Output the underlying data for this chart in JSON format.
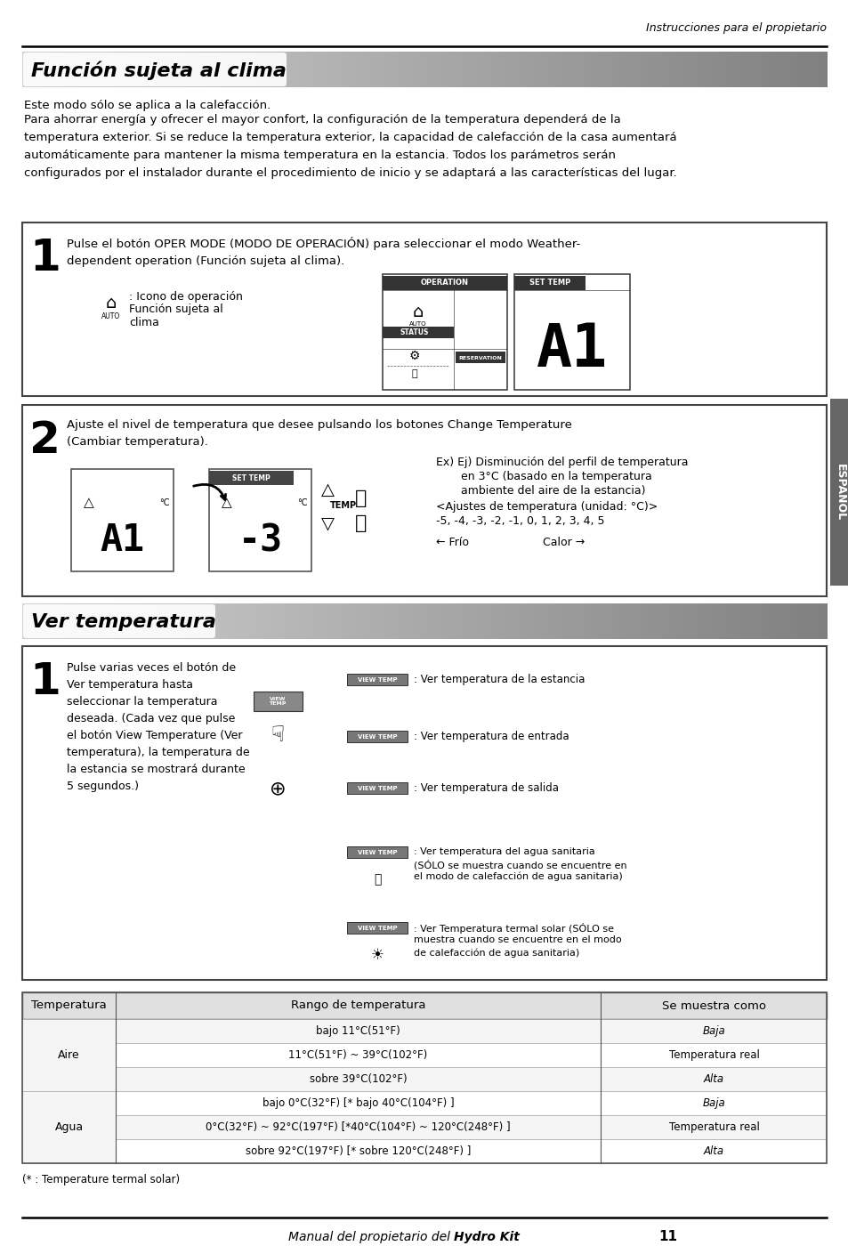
{
  "page_bg": "#ffffff",
  "header_text": "Instrucciones para el propietario",
  "section1_title": "Función sujeta al clima",
  "section2_title": "Ver temperatura",
  "section1_intro1": "Este modo sólo se aplica a la calefacción.",
  "section1_intro2": "Para ahorrar energía y ofrecer el mayor confort, la configuración de la temperatura dependerá de la\ntemperatura exterior. Si se reduce la temperatura exterior, la capacidad de calefacción de la casa aumentará\nautomáticamente para mantener la misma temperatura en la estancia. Todos los parámetros serán\nconfigurados por el instalador durante el procedimiento de inicio y se adaptará a las características del lugar.",
  "step1_text": "Pulse el botón OPER MODE (MODO DE OPERACIÓN) para seleccionar el modo Weather-\ndependent operation (Función sujeta al clima).",
  "step1_icon_text1": ": Icono de operación",
  "step1_icon_text2": "Función sujeta al",
  "step1_icon_text3": "clima",
  "step2_text": "Ajuste el nivel de temperatura que desee pulsando los botones Change Temperature\n(Cambiar temperatura).",
  "step2_right1": "Ex) Ej) Disminución del perfil de temperatura",
  "step2_right2": "en 3°C (basado en la temperatura",
  "step2_right3": "ambiente del aire de la estancia)",
  "step2_right4": "<Ajustes de temperatura (unidad: °C)>",
  "step2_right5": "-5, -4, -3, -2, -1, 0, 1, 2, 3, 4, 5",
  "step2_right6": "← Frío",
  "step2_right7": "Calor →",
  "vstep1_text": "Pulse varias veces el botón de\nVer temperatura hasta\nseleccionar la temperatura\ndeseada. (Cada vez que pulse\nel botón View Temperature (Ver\ntemperatura), la temperatura de\nla estancia se mostrará durante\n5 segundos.)",
  "view_item1": ": Ver temperatura de la estancia",
  "view_item2": ": Ver temperatura de entrada",
  "view_item3": ": Ver temperatura de salida",
  "view_item4a": ": Ver temperatura del agua sanitaria",
  "view_item4b": "(SÓLO se muestra cuando se encuentre en",
  "view_item4c": "el modo de calefacción de agua sanitaria)",
  "view_item5a": ": Ver Temperatura termal solar (SÓLO se",
  "view_item5b": "muestra cuando se encuentre en el modo",
  "view_item5c": "de calefacción de agua sanitaria)",
  "table_headers": [
    "Temperatura",
    "Rango de temperatura",
    "Se muestra como"
  ],
  "table_row0": [
    "",
    "bajo 11°C(51°F)",
    "Baja"
  ],
  "table_row1": [
    "Aire",
    "11°C(51°F) ~ 39°C(102°F)",
    "Temperatura real"
  ],
  "table_row2": [
    "",
    "sobre 39°C(102°F)",
    "Alta"
  ],
  "table_row3": [
    "",
    "bajo 0°C(32°F) [* bajo 40°C(104°F) ]",
    "Baja"
  ],
  "table_row4": [
    "Agua",
    "0°C(32°F) ~ 92°C(197°F) [*40°C(104°F) ~ 120°C(248°F) ]",
    "Temperatura real"
  ],
  "table_row5": [
    "",
    "sobre 92°C(197°F) [* sobre 120°C(248°F) ]",
    "Alta"
  ],
  "footnote": "(* : Temperature termal solar)",
  "footer_normal": "Manual del propietario del ",
  "footer_bold": "Hydro Kit",
  "footer_page": "11",
  "sidebar_text": "ESPAÑOL",
  "sidebar_bg": "#666666",
  "border_color": "#444444",
  "line_color": "#000000"
}
